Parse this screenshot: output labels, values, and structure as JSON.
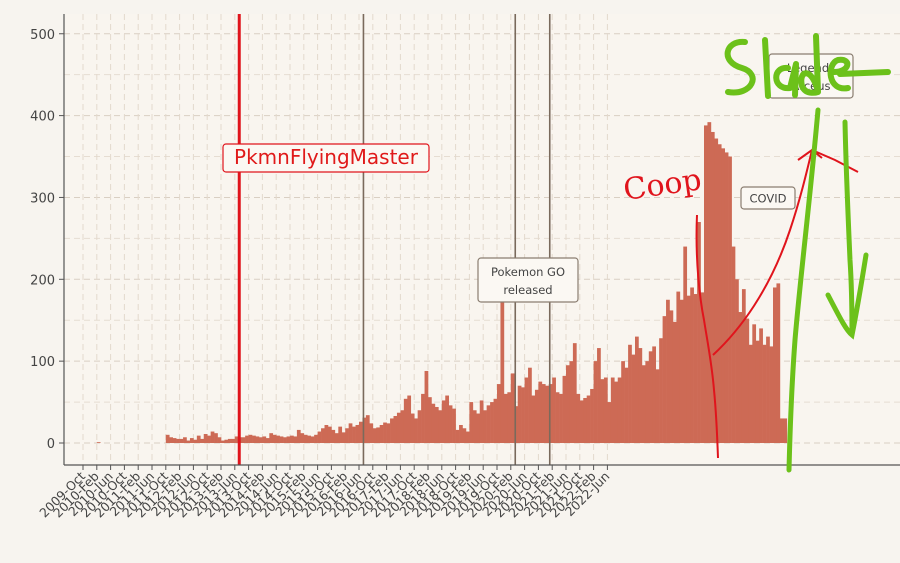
{
  "chart_data": {
    "type": "bar",
    "title": "",
    "xlabel": "",
    "ylabel": "",
    "ylim": [
      -25,
      525
    ],
    "yticks": [
      0,
      100,
      200,
      300,
      400,
      500
    ],
    "grid": true,
    "bar_color": "#cd6a55",
    "x_start": "2009-10",
    "x_labels": [
      "2009-Oct",
      "2010-Feb",
      "2010-Jun",
      "2010-Oct",
      "2011-Feb",
      "2011-Jun",
      "2011-Oct",
      "2012-Feb",
      "2012-Jun",
      "2012-Oct",
      "2013-Feb",
      "2013-Jun",
      "2013-Oct",
      "2014-Feb",
      "2014-Jun",
      "2014-Oct",
      "2015-Feb",
      "2015-Jun",
      "2015-Oct",
      "2016-Feb",
      "2016-Jun",
      "2016-Oct",
      "2017-Feb",
      "2017-Jun",
      "2017-Oct",
      "2018-Feb",
      "2018-Jun",
      "2018-Oct",
      "2019-Feb",
      "2019-Jun",
      "2019-Oct",
      "2020-Feb",
      "2020-Jun",
      "2020-Oct",
      "2021-Feb",
      "2021-Jun",
      "2021-Oct",
      "2022-Feb",
      "2022-Jun"
    ],
    "values": [
      0,
      0,
      0,
      0,
      1,
      0,
      0,
      0,
      0,
      0,
      0,
      0,
      0,
      0,
      0,
      0,
      0,
      0,
      0,
      0,
      0,
      0,
      0,
      0,
      10,
      7,
      6,
      5,
      5,
      7,
      3,
      6,
      4,
      9,
      5,
      11,
      9,
      14,
      12,
      7,
      3,
      4,
      5,
      5,
      8,
      7,
      7,
      9,
      10,
      9,
      8,
      7,
      8,
      6,
      12,
      10,
      9,
      8,
      7,
      8,
      9,
      8,
      16,
      12,
      10,
      9,
      8,
      10,
      14,
      18,
      22,
      20,
      16,
      12,
      20,
      13,
      18,
      24,
      20,
      22,
      26,
      31,
      34,
      24,
      18,
      19,
      22,
      25,
      24,
      30,
      33,
      37,
      40,
      54,
      58,
      36,
      30,
      40,
      60,
      88,
      56,
      48,
      44,
      40,
      52,
      58,
      46,
      42,
      16,
      22,
      18,
      14,
      50,
      40,
      36,
      52,
      40,
      46,
      50,
      54,
      72,
      176,
      60,
      62,
      85,
      45,
      70,
      68,
      80,
      92,
      58,
      65,
      75,
      72,
      70,
      72,
      80,
      62,
      60,
      82,
      95,
      100,
      122,
      60,
      52,
      55,
      58,
      66,
      100,
      116,
      78,
      80,
      50,
      80,
      75,
      80,
      100,
      92,
      120,
      108,
      130,
      116,
      95,
      100,
      112,
      118,
      90,
      128,
      155,
      175,
      162,
      148,
      185,
      175,
      240,
      180,
      190,
      182,
      270,
      184,
      388,
      392,
      380,
      372,
      365,
      360,
      355,
      350,
      240,
      200,
      160,
      188,
      152,
      120,
      145,
      125,
      140,
      120,
      130,
      118,
      190,
      195,
      30,
      30
    ],
    "vlines": [
      {
        "date": "2013-07",
        "label": "PkmnFlyingMaster"
      },
      {
        "date": "2016-07",
        "label": "Pokemon GO released"
      },
      {
        "date": "2020-03",
        "label": "COVID"
      },
      {
        "date": "2021-01",
        "label": "Legends\nArceus"
      }
    ]
  },
  "annotations": {
    "vline_color": "#e0141c",
    "marker_color": "#7a6a5c",
    "handwritten_red": "Coop",
    "handwritten_green": "Slade",
    "green_color": "#6cc11a"
  }
}
